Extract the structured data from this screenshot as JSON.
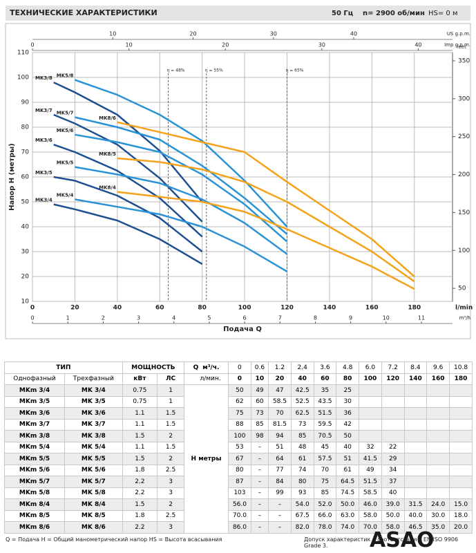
{
  "header": {
    "title": "ТЕХНИЧЕСКИЕ ХАРАКТЕРИСТИКИ",
    "freq": "50 Гц",
    "speed": "n= 2900 об/мин",
    "hs": "HS= 0 м"
  },
  "chart_data": {
    "type": "line",
    "xlabel": "Подача Q",
    "x_unit": "l/min",
    "ylabel": "Напор H (метры)",
    "xlim": [
      0,
      198
    ],
    "xticks": [
      0,
      20,
      40,
      60,
      80,
      100,
      120,
      140,
      160,
      180
    ],
    "ylim": [
      10,
      110
    ],
    "yticks": [
      10,
      20,
      30,
      40,
      50,
      60,
      70,
      80,
      90,
      100,
      110
    ],
    "y2label": "feet",
    "y2lim": [
      32.8,
      360.9
    ],
    "y2ticks": [
      50,
      100,
      150,
      200,
      250,
      300,
      350
    ],
    "x_us": {
      "label": "US g.p.m.",
      "lim": [
        0,
        52.3
      ],
      "ticks": [
        10,
        20,
        30,
        40
      ]
    },
    "x_imp": {
      "label": "Imp g.p.m.",
      "lim": [
        0,
        43.55
      ],
      "ticks": [
        0,
        10,
        20,
        30,
        40
      ]
    },
    "x_m3h": {
      "label": "m³/h",
      "lim": [
        0,
        11.88
      ],
      "ticks": [
        0,
        1,
        2,
        3,
        4,
        5,
        6,
        7,
        8,
        9,
        10,
        11
      ]
    },
    "grid": true,
    "efficiency_lines": [
      {
        "x": 64,
        "label": "η = 48%"
      },
      {
        "x": 82,
        "label": "η = 55%"
      },
      {
        "x": 120,
        "label": "η = 65%"
      }
    ],
    "series": [
      {
        "name": "MK3/4",
        "color": "#1d4f91",
        "x": [
          10,
          20,
          40,
          60,
          80
        ],
        "values": [
          49,
          47,
          42.5,
          35,
          25
        ]
      },
      {
        "name": "MK3/5",
        "color": "#1d4f91",
        "x": [
          10,
          20,
          40,
          60,
          80
        ],
        "values": [
          60,
          58.5,
          52.5,
          43.5,
          30
        ]
      },
      {
        "name": "MK3/6",
        "color": "#1d4f91",
        "x": [
          10,
          20,
          40,
          60,
          80
        ],
        "values": [
          73,
          70,
          62.5,
          51.5,
          36
        ]
      },
      {
        "name": "MK3/7",
        "color": "#1d4f91",
        "x": [
          10,
          20,
          40,
          60,
          80
        ],
        "values": [
          85,
          81.5,
          73,
          59.5,
          42
        ]
      },
      {
        "name": "MK3/8",
        "color": "#1d4f91",
        "x": [
          10,
          20,
          40,
          60,
          80
        ],
        "values": [
          98,
          94,
          85,
          70.5,
          50
        ]
      },
      {
        "name": "MK5/4",
        "color": "#2a93d5",
        "x": [
          20,
          40,
          60,
          80,
          100,
          120
        ],
        "values": [
          51,
          48,
          45,
          40,
          32,
          22
        ]
      },
      {
        "name": "MK5/5",
        "color": "#2a93d5",
        "x": [
          20,
          40,
          60,
          80,
          100,
          120
        ],
        "values": [
          64,
          61,
          57.5,
          51,
          41.5,
          29
        ]
      },
      {
        "name": "MK5/6",
        "color": "#2a93d5",
        "x": [
          20,
          40,
          60,
          80,
          100,
          120
        ],
        "values": [
          77,
          74,
          70,
          61,
          49,
          34
        ]
      },
      {
        "name": "MK5/7",
        "color": "#2a93d5",
        "x": [
          20,
          40,
          60,
          80,
          100,
          120
        ],
        "values": [
          84,
          80,
          75,
          64.5,
          51.5,
          37
        ]
      },
      {
        "name": "MK5/8",
        "color": "#2a93d5",
        "x": [
          20,
          40,
          60,
          80,
          100,
          120
        ],
        "values": [
          99,
          93,
          85,
          74.5,
          58.5,
          40
        ]
      },
      {
        "name": "MK8/4",
        "color": "#f5a21b",
        "x": [
          40,
          60,
          80,
          100,
          120,
          140,
          160,
          180
        ],
        "values": [
          54,
          52,
          50,
          46,
          39,
          31.5,
          24,
          15
        ]
      },
      {
        "name": "MK8/5",
        "color": "#f5a21b",
        "x": [
          40,
          60,
          80,
          100,
          120,
          140,
          160,
          180
        ],
        "values": [
          67.5,
          66,
          63,
          58,
          50,
          40,
          30,
          18
        ]
      },
      {
        "name": "MK8/6",
        "color": "#f5a21b",
        "x": [
          40,
          60,
          80,
          100,
          120,
          140,
          160,
          180
        ],
        "values": [
          82,
          78,
          74,
          70,
          58,
          46.5,
          35,
          20
        ]
      }
    ]
  },
  "table": {
    "header": {
      "type": "ТИП",
      "power": "МОЩНОСТЬ",
      "q": "Q",
      "m3h": "м³/ч.",
      "lmin": "л/мин.",
      "single": "Однофазный",
      "three": "Трехфазный",
      "kw": "кВт",
      "hp": "ЛС",
      "h": "H метры"
    },
    "q_m3h": [
      "0",
      "0.6",
      "1.2",
      "2.4",
      "3.6",
      "4.8",
      "6.0",
      "7.2",
      "8.4",
      "9.6",
      "10.8"
    ],
    "q_lmin": [
      "0",
      "10",
      "20",
      "40",
      "60",
      "80",
      "100",
      "120",
      "140",
      "160",
      "180"
    ],
    "rows": [
      [
        "MKm 3/4",
        "MK 3/4",
        "0.75",
        "1",
        "50",
        "49",
        "47",
        "42.5",
        "35",
        "25"
      ],
      [
        "MKm 3/5",
        "MK 3/5",
        "0.75",
        "1",
        "62",
        "60",
        "58.5",
        "52.5",
        "43.5",
        "30"
      ],
      [
        "MKm 3/6",
        "MK 3/6",
        "1.1",
        "1.5",
        "75",
        "73",
        "70",
        "62.5",
        "51.5",
        "36"
      ],
      [
        "MKm 3/7",
        "MK 3/7",
        "1.1",
        "1.5",
        "88",
        "85",
        "81.5",
        "73",
        "59.5",
        "42"
      ],
      [
        "MKm 3/8",
        "MK 3/8",
        "1.5",
        "2",
        "100",
        "98",
        "94",
        "85",
        "70.5",
        "50"
      ],
      [
        "MKm 5/4",
        "MK 5/4",
        "1.1",
        "1.5",
        "53",
        "–",
        "51",
        "48",
        "45",
        "40",
        "32",
        "22"
      ],
      [
        "MKm 5/5",
        "MK 5/5",
        "1.5",
        "2",
        "67",
        "–",
        "64",
        "61",
        "57.5",
        "51",
        "41.5",
        "29"
      ],
      [
        "MKm 5/6",
        "MK 5/6",
        "1.8",
        "2.5",
        "80",
        "–",
        "77",
        "74",
        "70",
        "61",
        "49",
        "34"
      ],
      [
        "MKm 5/7",
        "MK 5/7",
        "2.2",
        "3",
        "87",
        "–",
        "84",
        "80",
        "75",
        "64.5",
        "51.5",
        "37"
      ],
      [
        "MKm 5/8",
        "MK 5/8",
        "2.2",
        "3",
        "103",
        "–",
        "99",
        "93",
        "85",
        "74.5",
        "58.5",
        "40"
      ],
      [
        "MKm 8/4",
        "MK 8/4",
        "1.5",
        "2",
        "56.0",
        "–",
        "–",
        "54.0",
        "52.0",
        "50.0",
        "46.0",
        "39.0",
        "31.5",
        "24.0",
        "15.0"
      ],
      [
        "MKm 8/5",
        "MK 8/5",
        "1.8",
        "2.5",
        "70.0",
        "–",
        "–",
        "67.5",
        "66.0",
        "63.0",
        "58.0",
        "50.0",
        "40.0",
        "30.0",
        "18.0"
      ],
      [
        "MKm 8/6",
        "MK 8/6",
        "2.2",
        "3",
        "86.0",
        "–",
        "–",
        "82.0",
        "78.0",
        "74.0",
        "70.0",
        "58.0",
        "46.5",
        "35.0",
        "20.0"
      ]
    ]
  },
  "footer": {
    "legend": "Q = Подача  H = Общий манометрический напор  HS = Высота всасывания",
    "tolerance": "Допуск характеристик в соответствии с EN ISO 9906 Grade 3.",
    "logo": "ASAO"
  }
}
